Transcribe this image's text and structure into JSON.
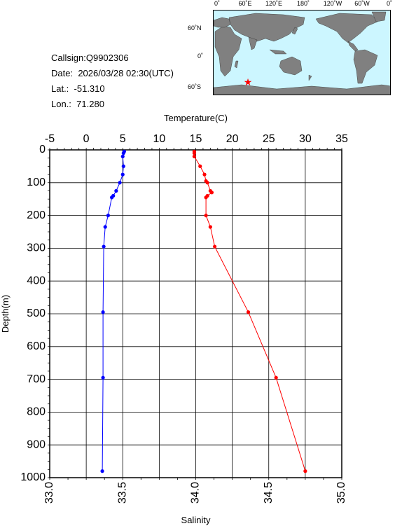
{
  "info": {
    "callsign_label": "Callsign:",
    "callsign": "Q9902306",
    "date_label": "Date:",
    "date": "2026/03/28 02:30(UTC)",
    "lat_label": "Lat.:",
    "lat": "-51.310",
    "lon_label": "Lon.:",
    "lon": "71.280"
  },
  "map": {
    "top_ticks": [
      "0˚",
      "60˚E",
      "120˚E",
      "180˚",
      "120˚W",
      "60˚W",
      "0˚"
    ],
    "lat_ticks": [
      "60˚N",
      "0˚",
      "60˚S"
    ],
    "ocean_color": "#ccf6ff",
    "land_color": "#808080",
    "marker_color": "#ff0000",
    "marker": "star-icon"
  },
  "chart_data": {
    "type": "line",
    "top_axis_label": "Temperature(C)",
    "bottom_axis_label": "Salinity",
    "ylabel": "Depth(m)",
    "temperature_range": [
      -5,
      35
    ],
    "temperature_ticks": [
      -5,
      0,
      5,
      10,
      15,
      20,
      25,
      30,
      35
    ],
    "salinity_range": [
      33.0,
      35.0
    ],
    "salinity_ticks": [
      "33.0",
      "33.5",
      "34.0",
      "34.5",
      "35.0"
    ],
    "depth_range": [
      0,
      1000
    ],
    "depth_ticks": [
      0,
      100,
      200,
      300,
      400,
      500,
      600,
      700,
      800,
      900,
      1000
    ],
    "grid": true,
    "series": [
      {
        "quantity": "temperature",
        "color": "#0000ff",
        "depth": [
          5,
          10,
          20,
          50,
          75,
          100,
          125,
          140,
          145,
          200,
          235,
          295,
          495,
          695,
          980
        ],
        "values": [
          5.2,
          5.1,
          5.0,
          5.1,
          5.0,
          4.6,
          4.1,
          3.7,
          3.5,
          3.0,
          2.6,
          2.4,
          2.3,
          2.3,
          2.2
        ]
      },
      {
        "quantity": "salinity",
        "color": "#ff0000",
        "depth": [
          5,
          10,
          20,
          50,
          75,
          95,
          100,
          125,
          130,
          140,
          145,
          200,
          235,
          295,
          495,
          695,
          980
        ],
        "values": [
          33.99,
          33.99,
          33.99,
          34.03,
          34.06,
          34.07,
          34.08,
          34.1,
          34.11,
          34.08,
          34.07,
          34.07,
          34.1,
          34.13,
          34.36,
          34.55,
          34.75
        ]
      }
    ]
  }
}
